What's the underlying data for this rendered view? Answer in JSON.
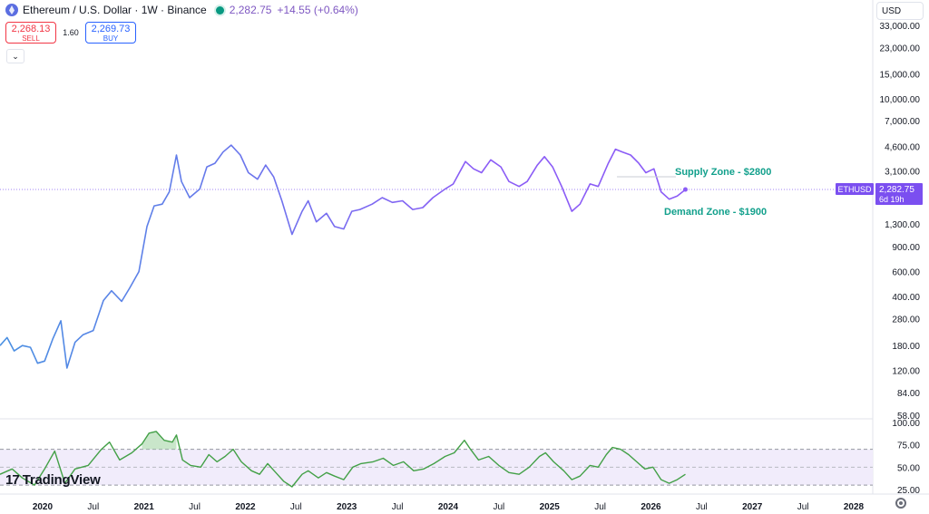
{
  "header": {
    "title": "Ethereum / U.S. Dollar · 1W · Binance",
    "price": "2,282.75",
    "change": "+14.55 (+0.64%)"
  },
  "trade": {
    "sell_price": "2,268.13",
    "sell_label": "SELL",
    "spread": "1.60",
    "buy_price": "2,269.73",
    "buy_label": "BUY"
  },
  "currency": "USD",
  "collapse_glyph": "⌄",
  "logo": {
    "mark": "17",
    "text": "TradingView"
  },
  "icons": {
    "logo": "ethereum-icon",
    "settings": "gear-icon",
    "live": "market-status-icon"
  },
  "colors": {
    "line_start": "#4a90e2",
    "line_end": "#8b5cf6",
    "price_label_bg": "#7b4ff0",
    "annotation": "#12a08c",
    "rsi_line": "#43a047",
    "rsi_band": "#f1ecfb"
  },
  "chart_data": [
    {
      "type": "line",
      "name": "ETHUSD",
      "scale": "log",
      "price_axis_labels": [
        "58.00",
        "84.00",
        "120.00",
        "180.00",
        "280.00",
        "400.00",
        "600.00",
        "900.00",
        "1,300.00",
        "3,100.00",
        "4,600.00",
        "7,000.00",
        "10,000.00",
        "15,000.00",
        "23,000.00",
        "33,000.00"
      ],
      "time_axis_labels": [
        "2020",
        "Jul",
        "2021",
        "Jul",
        "2022",
        "Jul",
        "2023",
        "Jul",
        "2024",
        "Jul",
        "2025",
        "Jul",
        "2026",
        "Jul",
        "2027",
        "Jul",
        "2028"
      ],
      "last_price": {
        "symbol": "ETHUSD",
        "value": "2,282.75",
        "countdown": "6d 19h"
      },
      "annotations": [
        {
          "text": "Supply Zone - $2800",
          "price": 2800
        },
        {
          "text": "Demand Zone - $1900",
          "price": 1900
        }
      ],
      "points": [
        {
          "t": 2019.58,
          "v": 180
        },
        {
          "t": 2019.65,
          "v": 205
        },
        {
          "t": 2019.72,
          "v": 165
        },
        {
          "t": 2019.8,
          "v": 180
        },
        {
          "t": 2019.88,
          "v": 175
        },
        {
          "t": 2019.95,
          "v": 135
        },
        {
          "t": 2020.02,
          "v": 140
        },
        {
          "t": 2020.1,
          "v": 200
        },
        {
          "t": 2020.18,
          "v": 270
        },
        {
          "t": 2020.24,
          "v": 125
        },
        {
          "t": 2020.32,
          "v": 190
        },
        {
          "t": 2020.4,
          "v": 215
        },
        {
          "t": 2020.5,
          "v": 230
        },
        {
          "t": 2020.6,
          "v": 375
        },
        {
          "t": 2020.68,
          "v": 440
        },
        {
          "t": 2020.78,
          "v": 370
        },
        {
          "t": 2020.86,
          "v": 460
        },
        {
          "t": 2020.95,
          "v": 600
        },
        {
          "t": 2021.03,
          "v": 1250
        },
        {
          "t": 2021.1,
          "v": 1750
        },
        {
          "t": 2021.18,
          "v": 1800
        },
        {
          "t": 2021.25,
          "v": 2200
        },
        {
          "t": 2021.32,
          "v": 4000
        },
        {
          "t": 2021.37,
          "v": 2600
        },
        {
          "t": 2021.45,
          "v": 2000
        },
        {
          "t": 2021.55,
          "v": 2300
        },
        {
          "t": 2021.62,
          "v": 3300
        },
        {
          "t": 2021.7,
          "v": 3500
        },
        {
          "t": 2021.78,
          "v": 4200
        },
        {
          "t": 2021.86,
          "v": 4700
        },
        {
          "t": 2021.95,
          "v": 4000
        },
        {
          "t": 2022.03,
          "v": 3000
        },
        {
          "t": 2022.12,
          "v": 2700
        },
        {
          "t": 2022.2,
          "v": 3400
        },
        {
          "t": 2022.28,
          "v": 2800
        },
        {
          "t": 2022.36,
          "v": 1900
        },
        {
          "t": 2022.46,
          "v": 1100
        },
        {
          "t": 2022.56,
          "v": 1600
        },
        {
          "t": 2022.62,
          "v": 1900
        },
        {
          "t": 2022.7,
          "v": 1350
        },
        {
          "t": 2022.8,
          "v": 1550
        },
        {
          "t": 2022.88,
          "v": 1250
        },
        {
          "t": 2022.97,
          "v": 1200
        },
        {
          "t": 2023.05,
          "v": 1600
        },
        {
          "t": 2023.13,
          "v": 1650
        },
        {
          "t": 2023.25,
          "v": 1800
        },
        {
          "t": 2023.35,
          "v": 2000
        },
        {
          "t": 2023.45,
          "v": 1850
        },
        {
          "t": 2023.55,
          "v": 1900
        },
        {
          "t": 2023.65,
          "v": 1650
        },
        {
          "t": 2023.75,
          "v": 1700
        },
        {
          "t": 2023.85,
          "v": 2000
        },
        {
          "t": 2023.97,
          "v": 2300
        },
        {
          "t": 2024.05,
          "v": 2500
        },
        {
          "t": 2024.17,
          "v": 3600
        },
        {
          "t": 2024.25,
          "v": 3200
        },
        {
          "t": 2024.33,
          "v": 3000
        },
        {
          "t": 2024.42,
          "v": 3700
        },
        {
          "t": 2024.52,
          "v": 3300
        },
        {
          "t": 2024.6,
          "v": 2600
        },
        {
          "t": 2024.7,
          "v": 2400
        },
        {
          "t": 2024.78,
          "v": 2600
        },
        {
          "t": 2024.88,
          "v": 3400
        },
        {
          "t": 2024.95,
          "v": 3900
        },
        {
          "t": 2025.03,
          "v": 3300
        },
        {
          "t": 2025.12,
          "v": 2400
        },
        {
          "t": 2025.22,
          "v": 1600
        },
        {
          "t": 2025.3,
          "v": 1800
        },
        {
          "t": 2025.4,
          "v": 2500
        },
        {
          "t": 2025.48,
          "v": 2400
        },
        {
          "t": 2025.58,
          "v": 3500
        },
        {
          "t": 2025.65,
          "v": 4400
        },
        {
          "t": 2025.72,
          "v": 4200
        },
        {
          "t": 2025.8,
          "v": 4000
        },
        {
          "t": 2025.88,
          "v": 3500
        },
        {
          "t": 2025.95,
          "v": 3000
        },
        {
          "t": 2026.03,
          "v": 3200
        },
        {
          "t": 2026.1,
          "v": 2200
        },
        {
          "t": 2026.18,
          "v": 1950
        },
        {
          "t": 2026.26,
          "v": 2050
        },
        {
          "t": 2026.34,
          "v": 2282.75
        }
      ]
    },
    {
      "type": "line",
      "name": "RSI",
      "axis_labels": [
        "25.00",
        "50.00",
        "75.00",
        "100.00"
      ],
      "band": [
        30,
        70
      ],
      "midline": 50,
      "points": [
        {
          "t": 2019.58,
          "v": 42
        },
        {
          "t": 2019.7,
          "v": 48
        },
        {
          "t": 2019.8,
          "v": 38
        },
        {
          "t": 2019.92,
          "v": 30
        },
        {
          "t": 2020.02,
          "v": 48
        },
        {
          "t": 2020.12,
          "v": 68
        },
        {
          "t": 2020.22,
          "v": 32
        },
        {
          "t": 2020.32,
          "v": 48
        },
        {
          "t": 2020.45,
          "v": 52
        },
        {
          "t": 2020.58,
          "v": 70
        },
        {
          "t": 2020.66,
          "v": 78
        },
        {
          "t": 2020.76,
          "v": 58
        },
        {
          "t": 2020.88,
          "v": 66
        },
        {
          "t": 2020.98,
          "v": 76
        },
        {
          "t": 2021.05,
          "v": 88
        },
        {
          "t": 2021.12,
          "v": 90
        },
        {
          "t": 2021.2,
          "v": 80
        },
        {
          "t": 2021.28,
          "v": 78
        },
        {
          "t": 2021.32,
          "v": 86
        },
        {
          "t": 2021.38,
          "v": 58
        },
        {
          "t": 2021.46,
          "v": 52
        },
        {
          "t": 2021.56,
          "v": 50
        },
        {
          "t": 2021.64,
          "v": 64
        },
        {
          "t": 2021.72,
          "v": 56
        },
        {
          "t": 2021.8,
          "v": 62
        },
        {
          "t": 2021.88,
          "v": 70
        },
        {
          "t": 2021.96,
          "v": 56
        },
        {
          "t": 2022.06,
          "v": 46
        },
        {
          "t": 2022.14,
          "v": 42
        },
        {
          "t": 2022.22,
          "v": 54
        },
        {
          "t": 2022.3,
          "v": 44
        },
        {
          "t": 2022.38,
          "v": 34
        },
        {
          "t": 2022.46,
          "v": 28
        },
        {
          "t": 2022.56,
          "v": 42
        },
        {
          "t": 2022.62,
          "v": 46
        },
        {
          "t": 2022.72,
          "v": 38
        },
        {
          "t": 2022.8,
          "v": 44
        },
        {
          "t": 2022.88,
          "v": 40
        },
        {
          "t": 2022.97,
          "v": 36
        },
        {
          "t": 2023.06,
          "v": 50
        },
        {
          "t": 2023.14,
          "v": 54
        },
        {
          "t": 2023.26,
          "v": 56
        },
        {
          "t": 2023.36,
          "v": 60
        },
        {
          "t": 2023.46,
          "v": 52
        },
        {
          "t": 2023.56,
          "v": 56
        },
        {
          "t": 2023.66,
          "v": 46
        },
        {
          "t": 2023.76,
          "v": 48
        },
        {
          "t": 2023.86,
          "v": 54
        },
        {
          "t": 2023.97,
          "v": 62
        },
        {
          "t": 2024.06,
          "v": 66
        },
        {
          "t": 2024.16,
          "v": 80
        },
        {
          "t": 2024.22,
          "v": 70
        },
        {
          "t": 2024.3,
          "v": 58
        },
        {
          "t": 2024.4,
          "v": 62
        },
        {
          "t": 2024.5,
          "v": 52
        },
        {
          "t": 2024.6,
          "v": 44
        },
        {
          "t": 2024.7,
          "v": 42
        },
        {
          "t": 2024.8,
          "v": 50
        },
        {
          "t": 2024.9,
          "v": 62
        },
        {
          "t": 2024.96,
          "v": 66
        },
        {
          "t": 2025.04,
          "v": 56
        },
        {
          "t": 2025.14,
          "v": 46
        },
        {
          "t": 2025.22,
          "v": 36
        },
        {
          "t": 2025.3,
          "v": 40
        },
        {
          "t": 2025.4,
          "v": 52
        },
        {
          "t": 2025.48,
          "v": 50
        },
        {
          "t": 2025.56,
          "v": 64
        },
        {
          "t": 2025.62,
          "v": 72
        },
        {
          "t": 2025.7,
          "v": 70
        },
        {
          "t": 2025.78,
          "v": 64
        },
        {
          "t": 2025.86,
          "v": 56
        },
        {
          "t": 2025.94,
          "v": 48
        },
        {
          "t": 2026.02,
          "v": 50
        },
        {
          "t": 2026.1,
          "v": 36
        },
        {
          "t": 2026.18,
          "v": 32
        },
        {
          "t": 2026.26,
          "v": 36
        },
        {
          "t": 2026.34,
          "v": 42
        }
      ]
    }
  ]
}
